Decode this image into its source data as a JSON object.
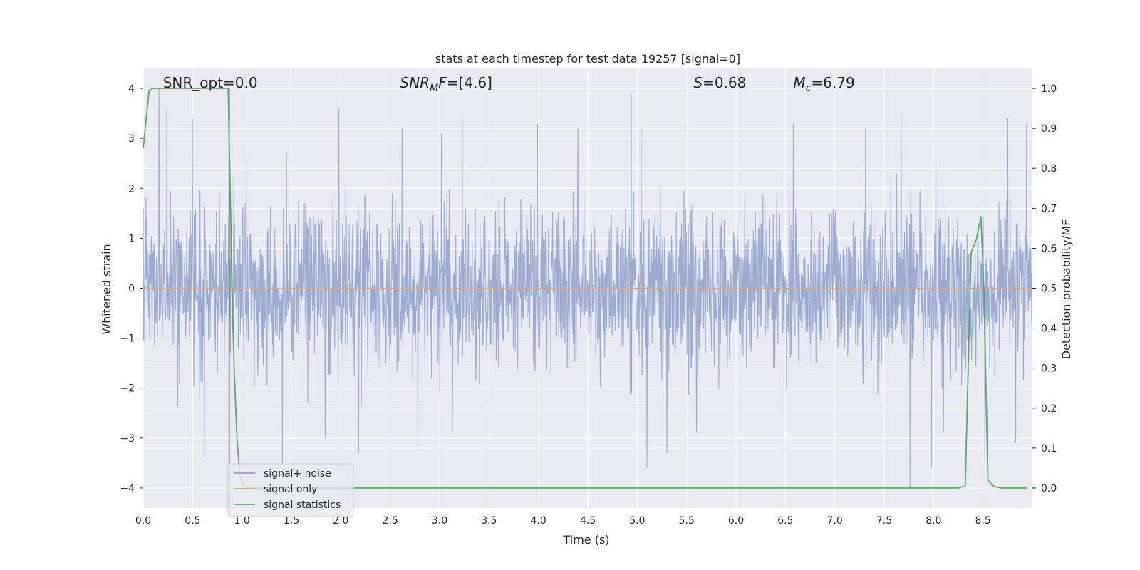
{
  "chart_data": {
    "type": "line",
    "title": "stats at each timestep for test data 19257 [signal=0]",
    "xlabel": "Time (s)",
    "ylabel_left": "Whitened strain",
    "ylabel_right": "Detection probability/MF",
    "xlim": [
      0.0,
      9.0
    ],
    "ylim_left": [
      -4.4,
      4.4
    ],
    "ylim_right": [
      -0.05,
      1.05
    ],
    "xticks": [
      "0.0",
      "0.5",
      "1.0",
      "1.5",
      "2.0",
      "2.5",
      "3.0",
      "3.5",
      "4.0",
      "4.5",
      "5.0",
      "5.5",
      "6.0",
      "6.5",
      "7.0",
      "7.5",
      "8.0",
      "8.5"
    ],
    "yticks_left": [
      "−4",
      "−3",
      "−2",
      "−1",
      "0",
      "1",
      "2",
      "3",
      "4"
    ],
    "yticks_right": [
      "0.0",
      "0.1",
      "0.2",
      "0.3",
      "0.4",
      "0.5",
      "0.6",
      "0.7",
      "0.8",
      "0.9",
      "1.0"
    ],
    "grid": true,
    "legend_position": "lower-left",
    "annotations": [
      {
        "id": "snr-opt",
        "text": "SNR_opt=0.0",
        "x": 0.2
      },
      {
        "id": "snr-mf",
        "base": "SNR",
        "sub": "M",
        "rest": "F=[4.6]",
        "x": 2.6
      },
      {
        "id": "s-stat",
        "base": "S",
        "rest": "=0.68",
        "x": 5.57
      },
      {
        "id": "mc",
        "base": "M",
        "sub": "c",
        "rest": "=6.79",
        "x": 6.58
      }
    ],
    "series": [
      {
        "name": "signal+ noise",
        "color": "#8da0cb",
        "axis": "left",
        "description_values": {
          "envelope_upper": [
            [
              0.0,
              1.6
            ],
            [
              0.5,
              2.3
            ],
            [
              1.0,
              1.9
            ],
            [
              1.5,
              1.8
            ],
            [
              2.0,
              1.9
            ],
            [
              2.5,
              2.1
            ],
            [
              3.0,
              2.2
            ],
            [
              3.5,
              2.0
            ],
            [
              4.0,
              2.1
            ],
            [
              4.5,
              2.0
            ],
            [
              5.0,
              2.2
            ],
            [
              5.5,
              2.0
            ],
            [
              6.0,
              2.1
            ],
            [
              6.5,
              2.2
            ],
            [
              7.0,
              2.1
            ],
            [
              7.5,
              2.2
            ],
            [
              8.0,
              2.2
            ],
            [
              8.5,
              2.0
            ],
            [
              9.0,
              1.9
            ]
          ],
          "envelope_lower": [
            [
              0.0,
              -1.7
            ],
            [
              0.5,
              -2.2
            ],
            [
              1.0,
              -2.1
            ],
            [
              1.5,
              -2.0
            ],
            [
              2.0,
              -2.0
            ],
            [
              2.5,
              -2.1
            ],
            [
              3.0,
              -2.2
            ],
            [
              3.5,
              -2.0
            ],
            [
              4.0,
              -2.1
            ],
            [
              4.5,
              -2.0
            ],
            [
              5.0,
              -2.2
            ],
            [
              5.5,
              -2.0
            ],
            [
              6.0,
              -2.1
            ],
            [
              6.5,
              -2.1
            ],
            [
              7.0,
              -2.1
            ],
            [
              7.5,
              -2.2
            ],
            [
              8.0,
              -2.2
            ],
            [
              8.5,
              -2.1
            ],
            [
              9.0,
              -2.0
            ]
          ],
          "peaks": [
            [
              0.16,
              4.0
            ],
            [
              0.24,
              3.6
            ],
            [
              0.5,
              3.4
            ],
            [
              0.62,
              2.8
            ],
            [
              1.05,
              2.6
            ],
            [
              1.45,
              2.7
            ],
            [
              1.98,
              3.6
            ],
            [
              2.62,
              3.2
            ],
            [
              3.02,
              3.1
            ],
            [
              3.23,
              3.4
            ],
            [
              3.99,
              3.3
            ],
            [
              4.4,
              3.2
            ],
            [
              4.94,
              3.9
            ],
            [
              5.04,
              3.2
            ],
            [
              6.58,
              3.3
            ],
            [
              7.31,
              3.2
            ],
            [
              7.67,
              3.5
            ],
            [
              8.75,
              3.4
            ],
            [
              8.94,
              3.3
            ]
          ],
          "troughs": [
            [
              0.62,
              -3.4
            ],
            [
              1.41,
              -3.5
            ],
            [
              1.84,
              -3.0
            ],
            [
              2.18,
              -3.3
            ],
            [
              2.78,
              -3.2
            ],
            [
              3.13,
              -2.9
            ],
            [
              5.1,
              -3.6
            ],
            [
              5.3,
              -3.3
            ],
            [
              5.6,
              -2.9
            ],
            [
              7.76,
              -4.0
            ],
            [
              7.98,
              -3.6
            ],
            [
              8.1,
              -2.9
            ],
            [
              8.52,
              -3.5
            ],
            [
              8.83,
              -3.1
            ]
          ]
        }
      },
      {
        "name": "signal only",
        "color": "#e5a47c",
        "axis": "left",
        "x": [
          0.0,
          9.0
        ],
        "y": [
          0.0,
          0.0
        ]
      },
      {
        "name": "signal statistics",
        "color": "#55a868",
        "axis": "right",
        "x": [
          0.0,
          0.02,
          0.06,
          0.1,
          0.14,
          0.3,
          0.5,
          0.7,
          0.86,
          0.88,
          0.9,
          0.92,
          0.95,
          0.98,
          1.02,
          1.2,
          2.0,
          3.0,
          4.0,
          5.0,
          6.0,
          7.0,
          8.0,
          8.25,
          8.32,
          8.38,
          8.43,
          8.48,
          8.51,
          8.55,
          8.6,
          8.68,
          8.95
        ],
        "y": [
          0.85,
          0.9,
          0.995,
          1.0,
          1.0,
          1.0,
          1.0,
          1.0,
          1.0,
          0.75,
          0.5,
          0.3,
          0.12,
          0.03,
          0.0,
          0.0,
          0.0,
          0.0,
          0.0,
          0.0,
          0.0,
          0.0,
          0.0,
          0.0,
          0.005,
          0.59,
          0.62,
          0.68,
          0.48,
          0.02,
          0.005,
          0.0,
          0.0
        ]
      }
    ],
    "vertical_line": {
      "x": 0.87,
      "color": "#404040"
    }
  }
}
